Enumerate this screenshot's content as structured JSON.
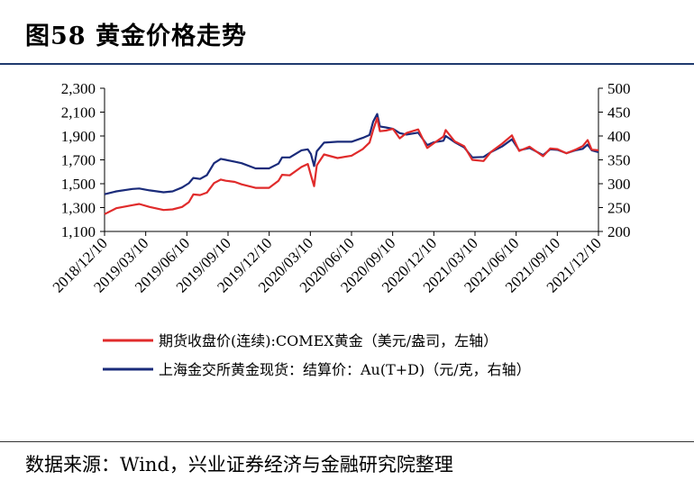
{
  "page": {
    "title": "图58 黄金价格走势",
    "source": "数据来源：Wind，兴业证券经济与金融研究院整理"
  },
  "chart_data": {
    "type": "line",
    "title": "",
    "y_left": {
      "ylim": [
        1100,
        2300
      ],
      "ticks": [
        "1,100",
        "1,300",
        "1,500",
        "1,700",
        "1,900",
        "2,100",
        "2,300"
      ]
    },
    "y_right": {
      "ylim": [
        200,
        500
      ],
      "ticks": [
        "200",
        "250",
        "300",
        "350",
        "400",
        "450",
        "500"
      ]
    },
    "x_ticks": [
      "2018/12/10",
      "2019/03/10",
      "2019/06/10",
      "2019/09/10",
      "2019/12/10",
      "2020/03/10",
      "2020/06/10",
      "2020/09/10",
      "2020/12/10",
      "2021/03/10",
      "2021/06/10",
      "2021/09/10",
      "2021/12/10"
    ],
    "x_range": [
      "2018-12-10",
      "2021-12-10"
    ],
    "legend_position": "bottom",
    "series": [
      {
        "name": "期货收盘价(连续):COMEX黄金（美元/盎司，左轴）",
        "axis": "left",
        "color": "#e02b2b",
        "points": [
          [
            "2018-12-10",
            1245
          ],
          [
            "2019-01-05",
            1295
          ],
          [
            "2019-02-10",
            1320
          ],
          [
            "2019-02-25",
            1330
          ],
          [
            "2019-03-20",
            1305
          ],
          [
            "2019-04-20",
            1280
          ],
          [
            "2019-05-10",
            1285
          ],
          [
            "2019-05-31",
            1305
          ],
          [
            "2019-06-15",
            1345
          ],
          [
            "2019-06-25",
            1410
          ],
          [
            "2019-07-10",
            1405
          ],
          [
            "2019-07-25",
            1425
          ],
          [
            "2019-08-10",
            1505
          ],
          [
            "2019-08-25",
            1535
          ],
          [
            "2019-09-05",
            1525
          ],
          [
            "2019-09-25",
            1515
          ],
          [
            "2019-10-10",
            1495
          ],
          [
            "2019-11-10",
            1465
          ],
          [
            "2019-12-10",
            1465
          ],
          [
            "2019-12-31",
            1525
          ],
          [
            "2020-01-08",
            1575
          ],
          [
            "2020-01-25",
            1570
          ],
          [
            "2020-02-20",
            1640
          ],
          [
            "2020-03-05",
            1665
          ],
          [
            "2020-03-12",
            1570
          ],
          [
            "2020-03-19",
            1480
          ],
          [
            "2020-03-25",
            1655
          ],
          [
            "2020-04-10",
            1745
          ],
          [
            "2020-05-10",
            1715
          ],
          [
            "2020-06-10",
            1735
          ],
          [
            "2020-07-05",
            1790
          ],
          [
            "2020-07-20",
            1845
          ],
          [
            "2020-07-28",
            1950
          ],
          [
            "2020-08-06",
            2050
          ],
          [
            "2020-08-12",
            1940
          ],
          [
            "2020-08-25",
            1945
          ],
          [
            "2020-09-10",
            1960
          ],
          [
            "2020-09-25",
            1880
          ],
          [
            "2020-10-10",
            1925
          ],
          [
            "2020-11-05",
            1955
          ],
          [
            "2020-11-25",
            1800
          ],
          [
            "2020-12-10",
            1840
          ],
          [
            "2020-12-31",
            1895
          ],
          [
            "2021-01-05",
            1950
          ],
          [
            "2021-01-25",
            1855
          ],
          [
            "2021-02-15",
            1815
          ],
          [
            "2021-03-05",
            1700
          ],
          [
            "2021-03-30",
            1690
          ],
          [
            "2021-04-15",
            1765
          ],
          [
            "2021-05-10",
            1835
          ],
          [
            "2021-06-01",
            1905
          ],
          [
            "2021-06-17",
            1775
          ],
          [
            "2021-07-10",
            1810
          ],
          [
            "2021-08-09",
            1730
          ],
          [
            "2021-08-25",
            1795
          ],
          [
            "2021-09-10",
            1790
          ],
          [
            "2021-09-30",
            1755
          ],
          [
            "2021-10-20",
            1785
          ],
          [
            "2021-11-05",
            1815
          ],
          [
            "2021-11-16",
            1865
          ],
          [
            "2021-11-25",
            1785
          ],
          [
            "2021-12-10",
            1780
          ]
        ]
      },
      {
        "name": "上海金交所黄金现货：结算价：Au(T+D)（元/克，右轴）",
        "axis": "right",
        "color": "#1a2b7a",
        "points": [
          [
            "2018-12-10",
            278
          ],
          [
            "2019-01-05",
            284
          ],
          [
            "2019-02-10",
            289
          ],
          [
            "2019-02-25",
            290
          ],
          [
            "2019-03-20",
            286
          ],
          [
            "2019-04-20",
            282
          ],
          [
            "2019-05-10",
            284
          ],
          [
            "2019-05-31",
            292
          ],
          [
            "2019-06-15",
            301
          ],
          [
            "2019-06-25",
            312
          ],
          [
            "2019-07-10",
            310
          ],
          [
            "2019-07-25",
            318
          ],
          [
            "2019-08-10",
            343
          ],
          [
            "2019-08-25",
            352
          ],
          [
            "2019-09-05",
            350
          ],
          [
            "2019-09-25",
            346
          ],
          [
            "2019-10-10",
            343
          ],
          [
            "2019-11-10",
            332
          ],
          [
            "2019-12-10",
            332
          ],
          [
            "2019-12-31",
            342
          ],
          [
            "2020-01-08",
            355
          ],
          [
            "2020-01-25",
            355
          ],
          [
            "2020-02-20",
            370
          ],
          [
            "2020-03-05",
            372
          ],
          [
            "2020-03-12",
            362
          ],
          [
            "2020-03-19",
            337
          ],
          [
            "2020-03-25",
            368
          ],
          [
            "2020-04-10",
            386
          ],
          [
            "2020-05-10",
            388
          ],
          [
            "2020-06-10",
            388
          ],
          [
            "2020-07-05",
            396
          ],
          [
            "2020-07-20",
            402
          ],
          [
            "2020-07-28",
            430
          ],
          [
            "2020-08-06",
            446
          ],
          [
            "2020-08-12",
            420
          ],
          [
            "2020-08-25",
            418
          ],
          [
            "2020-09-10",
            415
          ],
          [
            "2020-09-25",
            406
          ],
          [
            "2020-10-10",
            403
          ],
          [
            "2020-11-05",
            407
          ],
          [
            "2020-11-25",
            381
          ],
          [
            "2020-12-10",
            387
          ],
          [
            "2020-12-31",
            390
          ],
          [
            "2021-01-05",
            400
          ],
          [
            "2021-01-25",
            387
          ],
          [
            "2021-02-15",
            376
          ],
          [
            "2021-03-05",
            355
          ],
          [
            "2021-03-30",
            356
          ],
          [
            "2021-04-15",
            366
          ],
          [
            "2021-05-10",
            378
          ],
          [
            "2021-06-01",
            393
          ],
          [
            "2021-06-17",
            370
          ],
          [
            "2021-07-10",
            375
          ],
          [
            "2021-08-09",
            360
          ],
          [
            "2021-08-25",
            372
          ],
          [
            "2021-09-10",
            371
          ],
          [
            "2021-09-30",
            364
          ],
          [
            "2021-10-20",
            370
          ],
          [
            "2021-11-05",
            373
          ],
          [
            "2021-11-16",
            382
          ],
          [
            "2021-11-25",
            370
          ],
          [
            "2021-12-10",
            366
          ]
        ]
      }
    ]
  }
}
